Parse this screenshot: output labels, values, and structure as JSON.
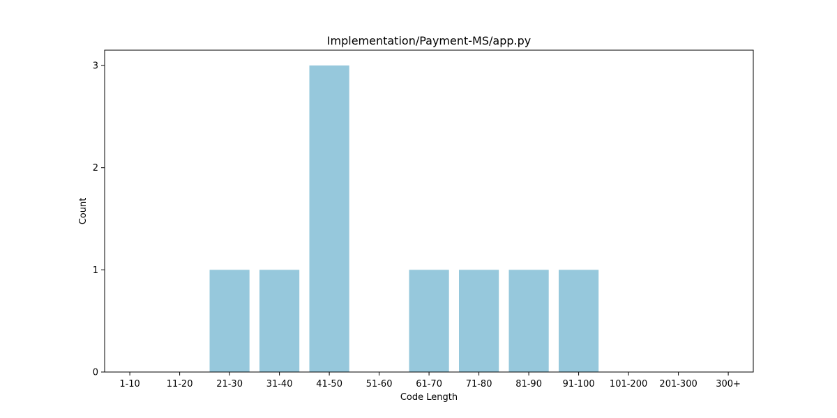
{
  "chart_data": {
    "type": "bar",
    "title": "Implementation/Payment-MS/app.py",
    "xlabel": "Code Length",
    "ylabel": "Count",
    "categories": [
      "1-10",
      "11-20",
      "21-30",
      "31-40",
      "41-50",
      "51-60",
      "61-70",
      "71-80",
      "81-90",
      "91-100",
      "101-200",
      "201-300",
      "300+"
    ],
    "values": [
      0,
      0,
      1,
      1,
      3,
      0,
      1,
      1,
      1,
      1,
      0,
      0,
      0
    ],
    "yticks": [
      "0",
      "1",
      "2",
      "3"
    ],
    "ylim": [
      0,
      3.15
    ],
    "bar_color": "#96c8dc",
    "grid": false,
    "legend": false
  }
}
